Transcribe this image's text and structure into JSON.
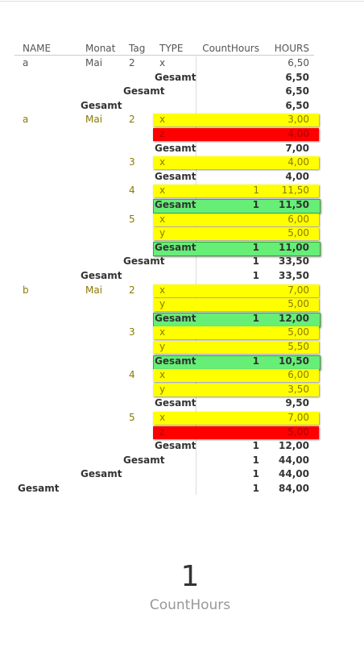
{
  "table": {
    "headers": [
      "NAME",
      "Monat",
      "Tag",
      "TYPE",
      "CountHours",
      "HOURS"
    ],
    "rows": [
      {
        "cells": {
          "name": "a",
          "monat": "Mai",
          "tag": "2",
          "type": "x",
          "hours": "6,50"
        }
      },
      {
        "bold": true,
        "cells": {
          "type": "Gesamt",
          "hours": "6,50"
        }
      },
      {
        "bold": true,
        "cells": {
          "tag": "Gesamt",
          "hours": "6,50"
        }
      },
      {
        "bold": true,
        "cells": {
          "monat": "Gesamt",
          "hours": "6,50"
        }
      },
      {
        "highlight": "#ffff00",
        "cells": {
          "name": "a",
          "monat": "Mai",
          "tag": "2",
          "type": "x",
          "hours": "3,00"
        }
      },
      {
        "highlight": "#ff0000",
        "cells": {
          "type": "z",
          "hours": "4,00"
        }
      },
      {
        "bold": true,
        "cells": {
          "type": "Gesamt",
          "hours": "7,00"
        }
      },
      {
        "highlight": "#ffff00",
        "cells": {
          "tag": "3",
          "type": "x",
          "hours": "4,00"
        }
      },
      {
        "bold": true,
        "cells": {
          "type": "Gesamt",
          "hours": "4,00"
        }
      },
      {
        "highlight": "#ffff00",
        "cells": {
          "tag": "4",
          "type": "x",
          "count": "1",
          "hours": "11,50"
        }
      },
      {
        "bold": true,
        "highlight": "#66ee77",
        "cells": {
          "type": "Gesamt",
          "count": "1",
          "hours": "11,50"
        }
      },
      {
        "highlight": "#ffff00",
        "cells": {
          "tag": "5",
          "type": "x",
          "hours": "6,00"
        }
      },
      {
        "highlight": "#ffff00",
        "cells": {
          "type": "y",
          "hours": "5,00"
        }
      },
      {
        "bold": true,
        "highlight": "#66ee77",
        "cells": {
          "type": "Gesamt",
          "count": "1",
          "hours": "11,00"
        }
      },
      {
        "bold": true,
        "cells": {
          "tag": "Gesamt",
          "count": "1",
          "hours": "33,50"
        }
      },
      {
        "bold": true,
        "cells": {
          "monat": "Gesamt",
          "count": "1",
          "hours": "33,50"
        }
      },
      {
        "highlight": "#ffff00",
        "cells": {
          "name": "b",
          "monat": "Mai",
          "tag": "2",
          "type": "x",
          "hours": "7,00"
        }
      },
      {
        "highlight": "#ffff00",
        "cells": {
          "type": "y",
          "hours": "5,00"
        }
      },
      {
        "bold": true,
        "highlight": "#66ee77",
        "cells": {
          "type": "Gesamt",
          "count": "1",
          "hours": "12,00"
        }
      },
      {
        "highlight": "#ffff00",
        "cells": {
          "tag": "3",
          "type": "x",
          "hours": "5,00"
        }
      },
      {
        "highlight": "#ffff00",
        "cells": {
          "type": "y",
          "hours": "5,50"
        }
      },
      {
        "bold": true,
        "highlight": "#66ee77",
        "cells": {
          "type": "Gesamt",
          "count": "1",
          "hours": "10,50"
        }
      },
      {
        "highlight": "#ffff00",
        "cells": {
          "tag": "4",
          "type": "x",
          "hours": "6,00"
        }
      },
      {
        "highlight": "#ffff00",
        "cells": {
          "type": "y",
          "hours": "3,50"
        }
      },
      {
        "bold": true,
        "cells": {
          "type": "Gesamt",
          "hours": "9,50"
        }
      },
      {
        "highlight": "#ffff00",
        "cells": {
          "tag": "5",
          "type": "x",
          "hours": "7,00"
        }
      },
      {
        "highlight": "#ff0000",
        "cells": {
          "type": "z",
          "hours": "5,00"
        }
      },
      {
        "bold": true,
        "cells": {
          "type": "Gesamt",
          "count": "1",
          "hours": "12,00"
        }
      },
      {
        "bold": true,
        "cells": {
          "tag": "Gesamt",
          "count": "1",
          "hours": "44,00"
        }
      },
      {
        "bold": true,
        "cells": {
          "monat": "Gesamt",
          "count": "1",
          "hours": "44,00"
        }
      },
      {
        "bold": true,
        "cells": {
          "name": "Gesamt",
          "count": "1",
          "hours": "84,00"
        }
      }
    ]
  },
  "card": {
    "value": "1",
    "label": "CountHours"
  }
}
